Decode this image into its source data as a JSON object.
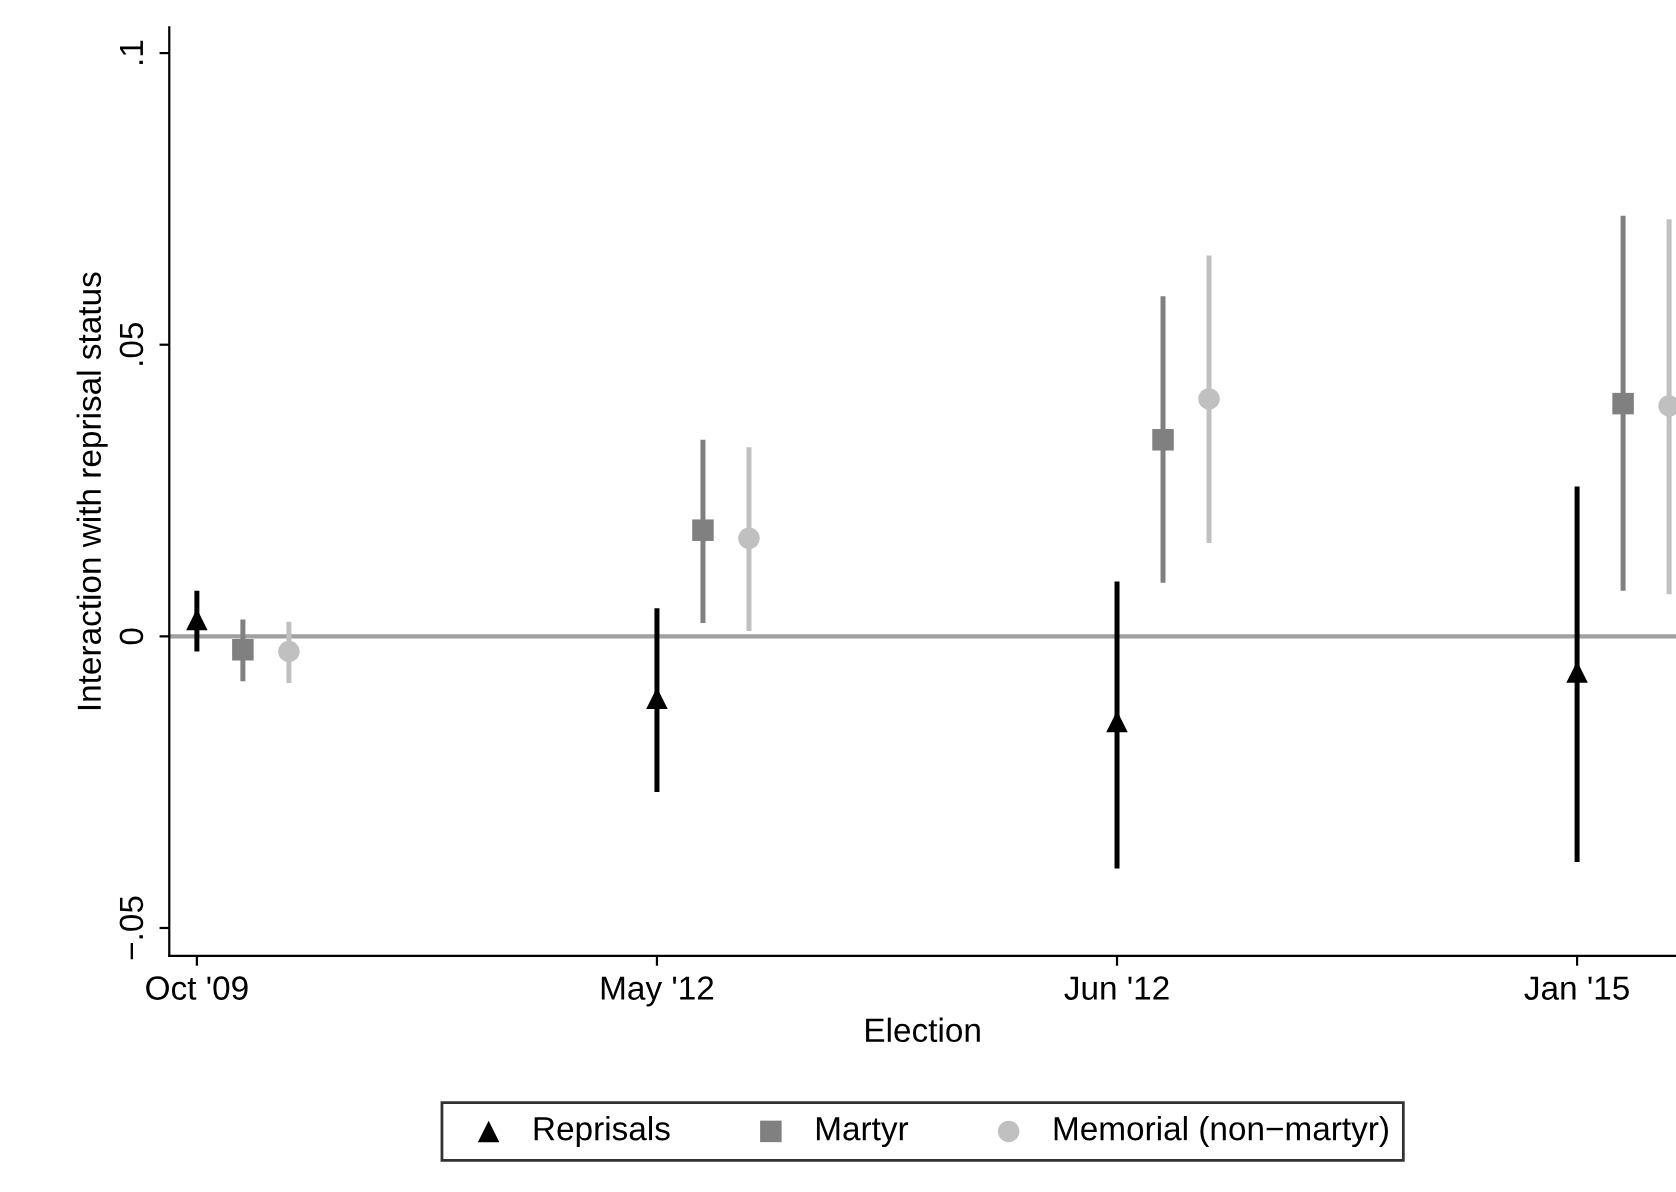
{
  "chart_data": {
    "type": "scatter",
    "xlabel": "Election",
    "ylabel": "Interaction with reprisal status",
    "categories": [
      "Oct '09",
      "May '12",
      "Jun '12",
      "Jan '15"
    ],
    "series": [
      {
        "name": "Reprisals",
        "color": "#000000",
        "marker": "triangle",
        "values": [
          0.0029,
          -0.0106,
          -0.0146,
          -0.0061
        ],
        "errors": [
          [
            -0.0026,
            0.0078
          ],
          [
            -0.0267,
            0.0048
          ],
          [
            -0.0398,
            0.0094
          ],
          [
            -0.0387,
            0.0257
          ]
        ]
      },
      {
        "name": "Martyr",
        "color": "#808080",
        "marker": "square",
        "values": [
          -0.0023,
          0.0182,
          0.0337,
          0.0399
        ],
        "errors": [
          [
            -0.0077,
            0.0029
          ],
          [
            0.0023,
            0.0337
          ],
          [
            0.0092,
            0.0583
          ],
          [
            0.0078,
            0.0721
          ]
        ]
      },
      {
        "name": "Memorial (non−martyr)",
        "color": "#c0c0c0",
        "marker": "circle",
        "values": [
          -0.0026,
          0.0168,
          0.0407,
          0.0395
        ],
        "errors": [
          [
            -0.008,
            0.0025
          ],
          [
            0.0009,
            0.0324
          ],
          [
            0.016,
            0.0653
          ],
          [
            0.0072,
            0.0715
          ]
        ]
      }
    ],
    "ylim": [
      -0.0548,
      0.1044
    ],
    "yticks": [
      {
        "value": -0.05,
        "label": "−.05"
      },
      {
        "value": 0,
        "label": "0"
      },
      {
        "value": 0.05,
        "label": ".05"
      },
      {
        "value": 0.1,
        "label": ".1"
      }
    ],
    "ref_lines": [
      {
        "axis": "y",
        "value": 0,
        "label": null,
        "color": "#a0a0a0"
      }
    ],
    "grid": false,
    "legend": "bottom"
  }
}
